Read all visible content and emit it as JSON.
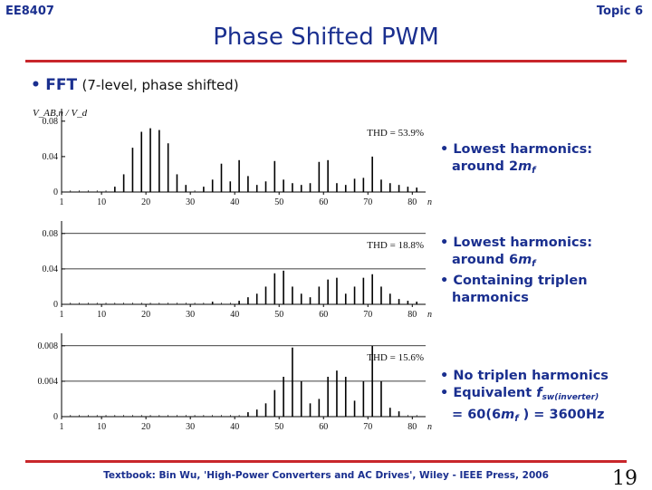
{
  "header": {
    "course": "EE8407",
    "topic": "Topic 6",
    "title": "Phase Shifted PWM"
  },
  "subheading": {
    "label": "FFT",
    "detail": "(7-level, phase shifted)"
  },
  "notes": [
    {
      "id": "note1",
      "lines": [
        [
          "• Lowest harmonics:"
        ],
        [
          "around 2",
          {
            "i": "m"
          },
          {
            "s": "f"
          }
        ]
      ]
    },
    {
      "id": "note2",
      "lines": [
        [
          "• Lowest harmonics:"
        ],
        [
          "around 6",
          {
            "i": "m"
          },
          {
            "s": "f"
          }
        ],
        [
          "• Containing triplen"
        ],
        [
          "harmonics"
        ]
      ]
    },
    {
      "id": "note3",
      "lines": [
        [
          "• No triplen harmonics"
        ],
        [
          "• Equivalent ",
          {
            "i": "f"
          },
          {
            "t": "sw(inverter)"
          }
        ],
        [
          "= 60(6",
          {
            "i": "m"
          },
          {
            "s": "f"
          },
          " ) = 3600Hz"
        ]
      ]
    }
  ],
  "footer": {
    "text": "Textbook: Bin Wu, 'High-Power Converters and AC Drives', Wiley - IEEE Press, 2006",
    "page": "19"
  },
  "chart_data": [
    {
      "type": "bar",
      "ylabel": "V_AB,n / V_d",
      "xlabel": "n",
      "xticks": [
        1,
        10,
        20,
        30,
        40,
        50,
        60,
        70,
        80
      ],
      "yticks": [
        "0",
        "0.04",
        "0.08"
      ],
      "xlim": [
        1,
        83
      ],
      "ylim": [
        0,
        0.09
      ],
      "thd": "THD = 53.9%",
      "harmonics": [
        [
          13,
          0.006
        ],
        [
          15,
          0.02
        ],
        [
          17,
          0.05
        ],
        [
          19,
          0.068
        ],
        [
          21,
          0.072
        ],
        [
          23,
          0.07
        ],
        [
          25,
          0.055
        ],
        [
          27,
          0.02
        ],
        [
          29,
          0.008
        ],
        [
          33,
          0.006
        ],
        [
          35,
          0.014
        ],
        [
          37,
          0.032
        ],
        [
          39,
          0.012
        ],
        [
          41,
          0.036
        ],
        [
          43,
          0.018
        ],
        [
          45,
          0.008
        ],
        [
          47,
          0.012
        ],
        [
          49,
          0.035
        ],
        [
          51,
          0.014
        ],
        [
          53,
          0.01
        ],
        [
          55,
          0.008
        ],
        [
          57,
          0.01
        ],
        [
          59,
          0.034
        ],
        [
          61,
          0.036
        ],
        [
          63,
          0.01
        ],
        [
          65,
          0.008
        ],
        [
          67,
          0.015
        ],
        [
          69,
          0.016
        ],
        [
          71,
          0.04
        ],
        [
          73,
          0.014
        ],
        [
          75,
          0.01
        ],
        [
          77,
          0.008
        ],
        [
          79,
          0.006
        ],
        [
          81,
          0.005
        ]
      ]
    },
    {
      "type": "bar",
      "xlabel": "n",
      "xticks": [
        1,
        10,
        20,
        30,
        40,
        50,
        60,
        70,
        80
      ],
      "yticks": [
        "0",
        "0.04",
        "0.08"
      ],
      "xlim": [
        1,
        83
      ],
      "ylim": [
        0,
        0.09
      ],
      "thd": "THD = 18.8%",
      "harmonics": [
        [
          35,
          0.003
        ],
        [
          41,
          0.004
        ],
        [
          43,
          0.008
        ],
        [
          45,
          0.012
        ],
        [
          47,
          0.02
        ],
        [
          49,
          0.035
        ],
        [
          51,
          0.038
        ],
        [
          53,
          0.02
        ],
        [
          55,
          0.012
        ],
        [
          57,
          0.008
        ],
        [
          59,
          0.02
        ],
        [
          61,
          0.028
        ],
        [
          63,
          0.03
        ],
        [
          65,
          0.012
        ],
        [
          67,
          0.02
        ],
        [
          69,
          0.03
        ],
        [
          71,
          0.034
        ],
        [
          73,
          0.02
        ],
        [
          75,
          0.012
        ],
        [
          77,
          0.006
        ],
        [
          79,
          0.004
        ],
        [
          81,
          0.003
        ]
      ]
    },
    {
      "type": "bar",
      "xlabel": "n",
      "xticks": [
        1,
        10,
        20,
        30,
        40,
        50,
        60,
        70,
        80
      ],
      "yticks": [
        "0",
        "0.004",
        "0.008"
      ],
      "xlim": [
        1,
        83
      ],
      "ylim": [
        0,
        0.009
      ],
      "thd": "THD = 15.6%",
      "harmonics": [
        [
          43,
          0.0005
        ],
        [
          45,
          0.0008
        ],
        [
          47,
          0.0015
        ],
        [
          49,
          0.003
        ],
        [
          51,
          0.0045
        ],
        [
          53,
          0.0078
        ],
        [
          55,
          0.004
        ],
        [
          57,
          0.0015
        ],
        [
          59,
          0.002
        ],
        [
          61,
          0.0045
        ],
        [
          63,
          0.0052
        ],
        [
          65,
          0.0045
        ],
        [
          67,
          0.0018
        ],
        [
          69,
          0.004
        ],
        [
          71,
          0.008
        ],
        [
          73,
          0.004
        ],
        [
          75,
          0.001
        ],
        [
          77,
          0.0006
        ]
      ]
    }
  ]
}
